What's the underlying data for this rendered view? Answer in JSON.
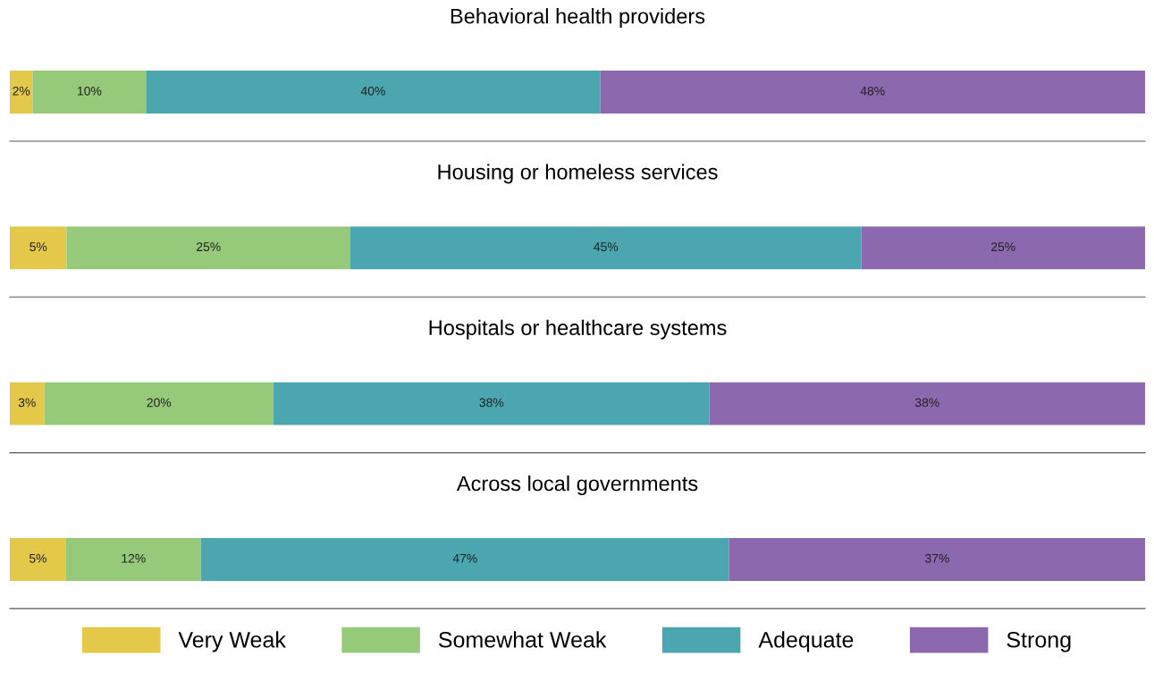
{
  "chart_data": [
    {
      "type": "bar",
      "orientation": "horizontal",
      "stacked": true,
      "title": "Behavioral health providers",
      "categories": [
        null
      ],
      "xlim": [
        0,
        100
      ],
      "series": [
        {
          "color": "#e3c84a",
          "values": [
            2
          ],
          "value_labels": [
            "2%"
          ]
        },
        {
          "color": "#96c97a",
          "values": [
            10
          ],
          "value_labels": [
            "10%"
          ]
        },
        {
          "color": "#4ba6b0",
          "values": [
            40
          ],
          "value_labels": [
            "40%"
          ]
        },
        {
          "color": "#8c68ae",
          "values": [
            48
          ],
          "value_labels": [
            "48%"
          ]
        }
      ]
    },
    {
      "type": "bar",
      "orientation": "horizontal",
      "stacked": true,
      "title": "Housing or homeless services",
      "categories": [
        null
      ],
      "xlim": [
        0,
        100
      ],
      "series": [
        {
          "color": "#e3c84a",
          "values": [
            5
          ],
          "value_labels": [
            "5%"
          ]
        },
        {
          "color": "#96c97a",
          "values": [
            25
          ],
          "value_labels": [
            "25%"
          ]
        },
        {
          "color": "#4ba6b0",
          "values": [
            45
          ],
          "value_labels": [
            "45%"
          ]
        },
        {
          "color": "#8c68ae",
          "values": [
            25
          ],
          "value_labels": [
            "25%"
          ]
        }
      ]
    },
    {
      "type": "bar",
      "orientation": "horizontal",
      "stacked": true,
      "title": "Hospitals or healthcare systems",
      "categories": [
        null
      ],
      "xlim": [
        0,
        99
      ],
      "series": [
        {
          "color": "#e3c84a",
          "values": [
            3
          ],
          "value_labels": [
            "3%"
          ]
        },
        {
          "color": "#96c97a",
          "values": [
            20
          ],
          "value_labels": [
            "20%"
          ]
        },
        {
          "color": "#4ba6b0",
          "values": [
            38
          ],
          "value_labels": [
            "38%"
          ]
        },
        {
          "color": "#8c68ae",
          "values": [
            38
          ],
          "value_labels": [
            "38%"
          ]
        }
      ]
    },
    {
      "type": "bar",
      "orientation": "horizontal",
      "stacked": true,
      "title": "Across local governments",
      "categories": [
        null
      ],
      "xlim": [
        0,
        101
      ],
      "legend": "bottom",
      "series": [
        {
          "name": "Very Weak",
          "color": "#e3c84a",
          "values": [
            5
          ],
          "value_labels": [
            "5%"
          ]
        },
        {
          "name": "Somewhat Weak",
          "color": "#96c97a",
          "values": [
            12
          ],
          "value_labels": [
            "12%"
          ]
        },
        {
          "name": "Adequate",
          "color": "#4ba6b0",
          "values": [
            47
          ],
          "value_labels": [
            "47%"
          ]
        },
        {
          "name": "Strong",
          "color": "#8c68ae",
          "values": [
            37
          ],
          "value_labels": [
            "37%"
          ]
        }
      ]
    }
  ]
}
